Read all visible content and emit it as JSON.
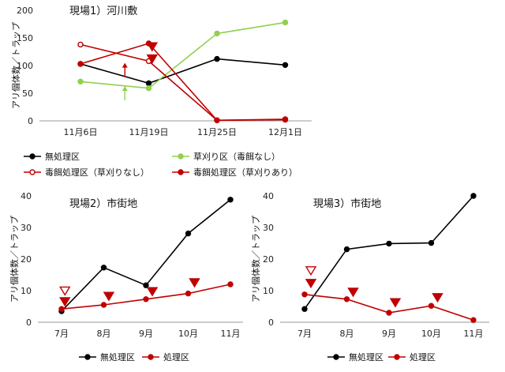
{
  "chart_data": [
    {
      "type": "line",
      "title": "現場1）河川敷",
      "ylabel": "アリ個体数／トラップ",
      "categories": [
        "11月6日",
        "11月19日",
        "11月25日",
        "12月1日"
      ],
      "ylim": [
        0,
        200
      ],
      "yticks": [
        0,
        50,
        100,
        150,
        200
      ],
      "series": [
        {
          "name": "無処理区",
          "color": "#000000",
          "marker": "filled",
          "values": [
            103,
            68,
            112,
            101
          ]
        },
        {
          "name": "草刈り区（毒餌なし）",
          "color": "#92d050",
          "marker": "filled",
          "values": [
            71,
            59,
            158,
            178
          ]
        },
        {
          "name": "毒餌処理区（草刈りなし）",
          "color": "#c00000",
          "marker": "open",
          "values": [
            138,
            108,
            1,
            3
          ]
        },
        {
          "name": "毒餌処理区（草刈りあり）",
          "color": "#c00000",
          "marker": "filled",
          "values": [
            103,
            140,
            1,
            2
          ]
        }
      ],
      "legend": "bottom",
      "annotations": [
        {
          "type": "arrow-up",
          "color": "#92d050",
          "x": 0.65,
          "y": 50
        },
        {
          "type": "arrow-up",
          "color": "#c00000",
          "x": 0.65,
          "y": 92
        },
        {
          "type": "triangle-down-filled",
          "color": "#c00000",
          "x": 1.05,
          "y": 134
        },
        {
          "type": "triangle-down-filled",
          "color": "#c00000",
          "x": 1.05,
          "y": 112
        }
      ]
    },
    {
      "type": "line",
      "title": "現場2）市街地",
      "ylabel": "アリ個体数／トラップ",
      "categories": [
        "7月",
        "8月",
        "9月",
        "10月",
        "11月"
      ],
      "ylim": [
        0,
        40
      ],
      "yticks": [
        0,
        10,
        20,
        30,
        40
      ],
      "series": [
        {
          "name": "無処理区",
          "color": "#000000",
          "marker": "filled",
          "values": [
            3.5,
            17.3,
            11.7,
            28.1,
            38.8
          ]
        },
        {
          "name": "処理区",
          "color": "#c00000",
          "marker": "filled",
          "values": [
            4.2,
            5.5,
            7.3,
            9.1,
            12.0
          ]
        }
      ],
      "legend": "bottom",
      "annotations": [
        {
          "type": "triangle-down-open",
          "color": "#c00000",
          "x": 0.08,
          "y": 9.9
        },
        {
          "type": "triangle-down-filled",
          "color": "#c00000",
          "x": 0.08,
          "y": 6.5
        },
        {
          "type": "triangle-down-filled",
          "color": "#c00000",
          "x": 1.12,
          "y": 8.2
        },
        {
          "type": "triangle-down-filled",
          "color": "#c00000",
          "x": 2.15,
          "y": 9.7
        },
        {
          "type": "triangle-down-filled",
          "color": "#c00000",
          "x": 3.15,
          "y": 12.5
        }
      ]
    },
    {
      "type": "line",
      "title": "現場3）市街地",
      "ylabel": "アリ個体数／トラップ",
      "categories": [
        "7月",
        "8月",
        "9月",
        "10月",
        "11月"
      ],
      "ylim": [
        0,
        40
      ],
      "yticks": [
        0,
        10,
        20,
        30,
        40
      ],
      "series": [
        {
          "name": "無処理区",
          "color": "#000000",
          "marker": "filled",
          "values": [
            4.2,
            23.1,
            24.9,
            25.1,
            40.0
          ]
        },
        {
          "name": "処理区",
          "color": "#c00000",
          "marker": "filled",
          "values": [
            8.8,
            7.3,
            3.0,
            5.2,
            0.7
          ]
        }
      ],
      "legend": "bottom",
      "annotations": [
        {
          "type": "triangle-down-open",
          "color": "#c00000",
          "x": 0.15,
          "y": 16.3
        },
        {
          "type": "triangle-down-filled",
          "color": "#c00000",
          "x": 0.15,
          "y": 12.3
        },
        {
          "type": "triangle-down-filled",
          "color": "#c00000",
          "x": 1.15,
          "y": 9.5
        },
        {
          "type": "triangle-down-filled",
          "color": "#c00000",
          "x": 2.15,
          "y": 6.2
        },
        {
          "type": "triangle-down-filled",
          "color": "#c00000",
          "x": 3.15,
          "y": 7.8
        }
      ]
    }
  ]
}
